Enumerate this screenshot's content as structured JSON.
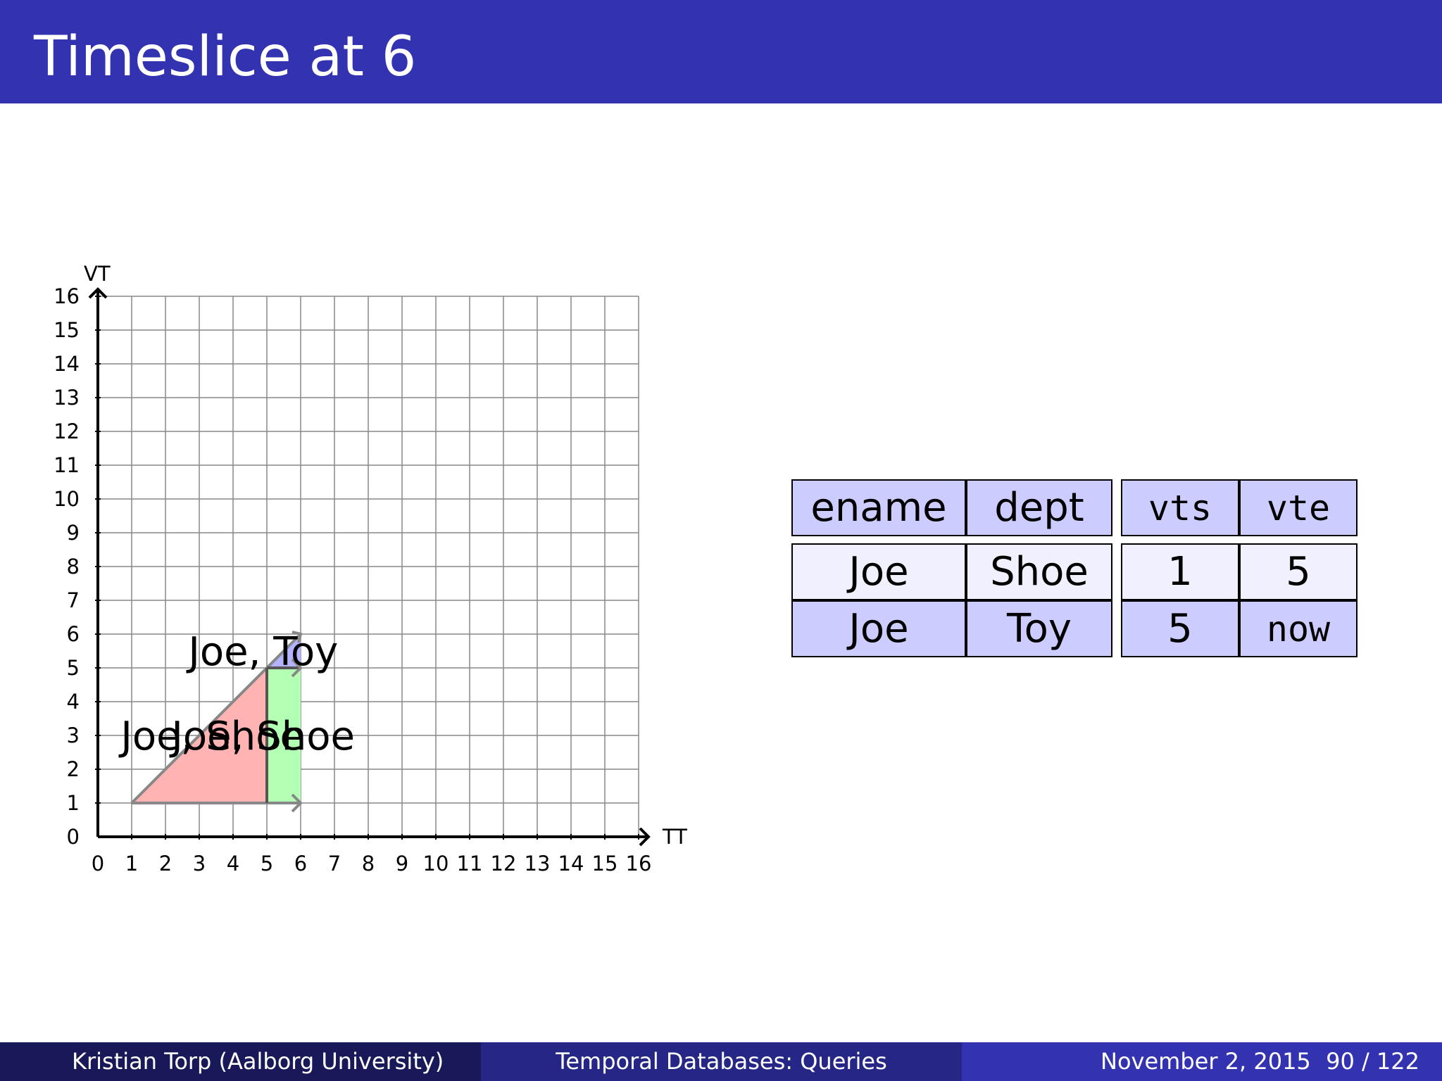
{
  "slide": {
    "title": "Timeslice at 6"
  },
  "chart_data": {
    "type": "area",
    "xlabel": "TT",
    "ylabel": "VT",
    "xlim": [
      0,
      16
    ],
    "ylim": [
      0,
      16
    ],
    "x_ticks": [
      "0",
      "1",
      "2",
      "3",
      "4",
      "5",
      "6",
      "7",
      "8",
      "9",
      "10",
      "11",
      "12",
      "13",
      "14",
      "15",
      "16"
    ],
    "y_ticks": [
      "0",
      "1",
      "2",
      "3",
      "4",
      "5",
      "6",
      "7",
      "8",
      "9",
      "10",
      "11",
      "12",
      "13",
      "14",
      "15",
      "16"
    ],
    "grid": true,
    "regions": [
      {
        "label": "Joe, Shoe",
        "color": "#ffb3b3",
        "points": [
          [
            1,
            1
          ],
          [
            5,
            1
          ],
          [
            5,
            5
          ]
        ]
      },
      {
        "label": "Joe, Shoe",
        "color": "#b3ffb3",
        "points": [
          [
            5,
            1
          ],
          [
            6,
            1
          ],
          [
            6,
            5
          ],
          [
            5,
            5
          ]
        ]
      },
      {
        "label": "Joe, Toy",
        "color": "#b3b3ff",
        "points": [
          [
            5,
            5
          ],
          [
            6,
            5
          ],
          [
            6,
            6
          ]
        ]
      }
    ],
    "labels": [
      {
        "text": "Joe, Shoe",
        "x": 1.3,
        "y": 3
      },
      {
        "text": "Joe, Shoe",
        "x": 2.8,
        "y": 3
      },
      {
        "text": "Joe, Toy",
        "x": 3.3,
        "y": 5.5
      }
    ]
  },
  "table": {
    "headers": [
      "ename",
      "dept",
      "vts",
      "vte"
    ],
    "rows": [
      [
        "Joe",
        "Shoe",
        "1",
        "5"
      ],
      [
        "Joe",
        "Toy",
        "5",
        "now"
      ]
    ]
  },
  "footer": {
    "author": "Kristian Torp  (Aalborg University)",
    "subject": "Temporal Databases: Queries",
    "date": "November 2, 2015",
    "page": "90 / 122"
  }
}
